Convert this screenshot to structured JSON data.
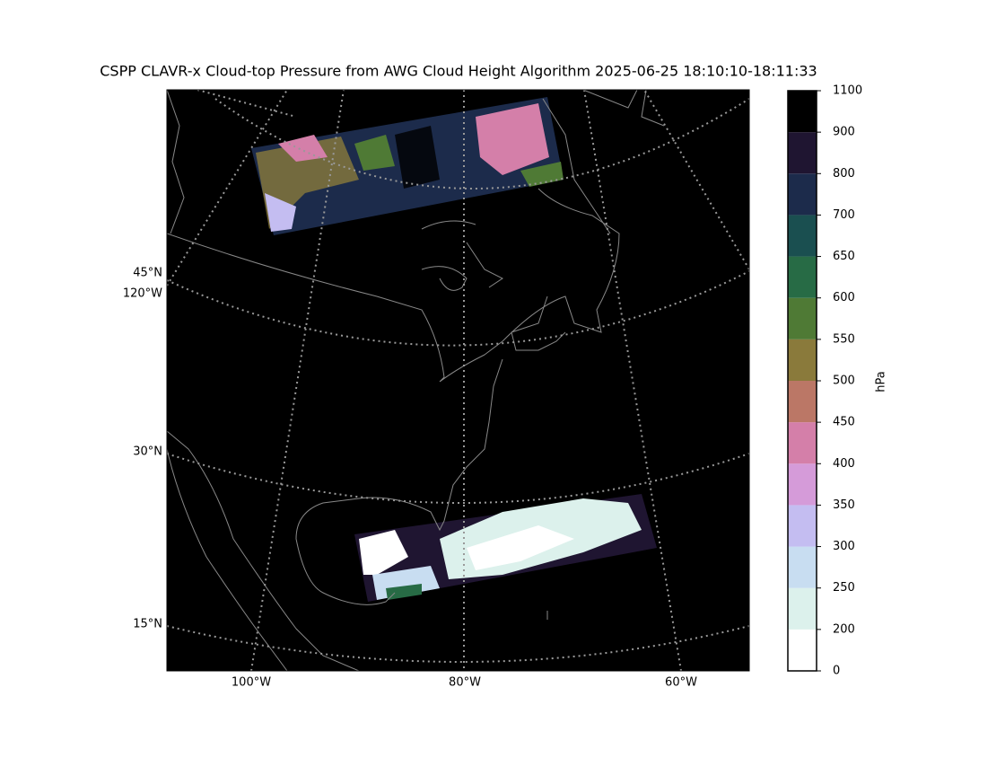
{
  "title": "CSPP CLAVR-x Cloud-top Pressure from AWG Cloud Height Algorithm 2025-06-25 18:10:10-18:11:33",
  "map": {
    "lat_labels": [
      "45°N",
      "30°N",
      "15°N"
    ],
    "lon_labels": [
      "120°W",
      "100°W",
      "80°W",
      "60°W"
    ]
  },
  "colorbar": {
    "label": "hPa",
    "ticks": [
      0,
      200,
      250,
      300,
      350,
      400,
      450,
      500,
      550,
      600,
      650,
      700,
      800,
      900,
      1100
    ],
    "colors": [
      "#ffffff",
      "#dcf1ec",
      "#c8ddf1",
      "#c4bdf1",
      "#d59bd9",
      "#d47fa9",
      "#bb7766",
      "#8a7a3b",
      "#4f7a35",
      "#276b45",
      "#1a4f50",
      "#1c2b4b",
      "#1f1531",
      "#000000"
    ]
  }
}
